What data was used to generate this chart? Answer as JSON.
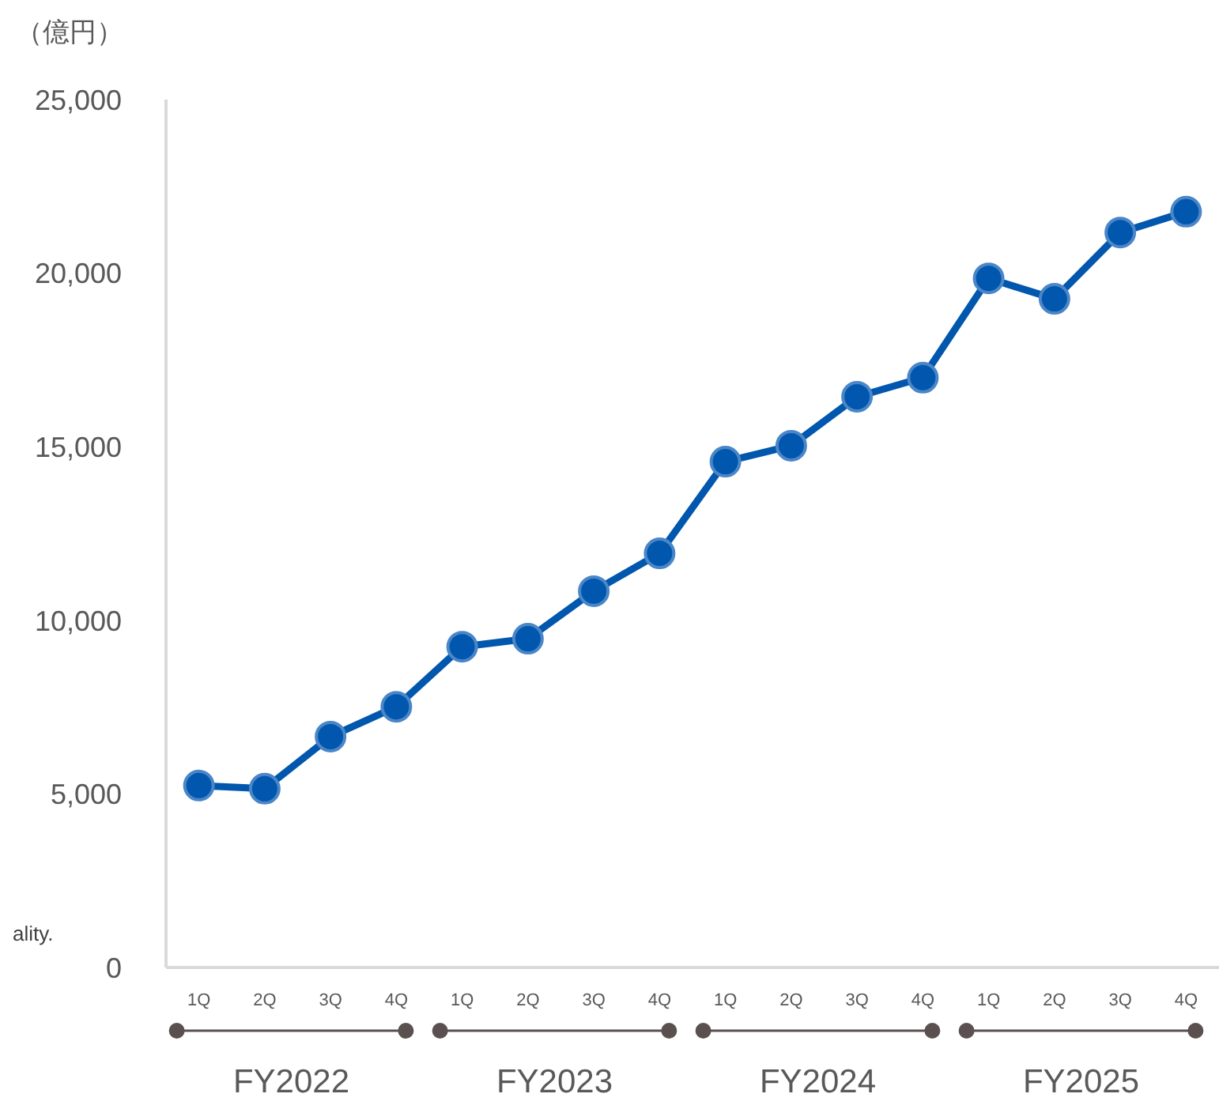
{
  "chart_data": {
    "type": "line",
    "ylabel": "（億円）",
    "categories": [
      "1Q",
      "2Q",
      "3Q",
      "4Q",
      "1Q",
      "2Q",
      "3Q",
      "4Q",
      "1Q",
      "2Q",
      "3Q",
      "4Q",
      "1Q",
      "2Q",
      "3Q",
      "4Q"
    ],
    "series": [
      {
        "color": "#0057ad",
        "values": [
          5240,
          5150,
          6650,
          7510,
          9240,
          9470,
          10840,
          11930,
          14570,
          15030,
          16440,
          16990,
          19850,
          19260,
          21170,
          21770
        ]
      }
    ],
    "ylim": [
      0,
      25000
    ],
    "yticks": [
      0,
      {
        "value": 5000,
        "label": "5,000"
      },
      {
        "value": 10000,
        "label": "10,000"
      },
      {
        "value": 15000,
        "label": "15,000"
      },
      {
        "value": 20000,
        "label": "20,000"
      },
      {
        "value": 25000,
        "label": "25,000"
      }
    ],
    "grid": false,
    "legend": false,
    "marker": "circle",
    "line_style": "solid",
    "annotations": [
      "FY2022",
      "FY2023",
      "FY2024",
      "FY2025",
      "ality."
    ]
  }
}
